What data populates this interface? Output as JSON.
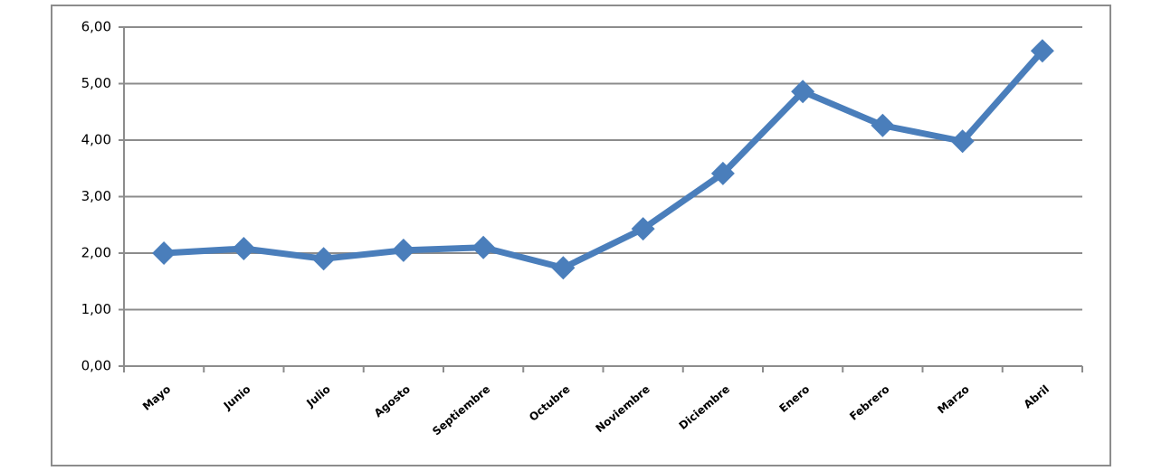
{
  "chart_data": {
    "type": "line",
    "categories": [
      "Mayo",
      "Junio",
      "Julio",
      "Agosto",
      "Septiembre",
      "Octubre",
      "Noviembre",
      "Diciembre",
      "Enero",
      "Febrero",
      "Marzo",
      "Abril"
    ],
    "values": [
      2.0,
      2.08,
      1.9,
      2.05,
      2.1,
      1.74,
      2.43,
      3.41,
      4.86,
      4.26,
      3.98,
      5.58
    ],
    "color": "#4a7ebb",
    "ylim": [
      0,
      6
    ],
    "yticks": [
      {
        "value": 0,
        "label": "0,00"
      },
      {
        "value": 1,
        "label": "1,00"
      },
      {
        "value": 2,
        "label": "2,00"
      },
      {
        "value": 3,
        "label": "3,00"
      },
      {
        "value": 4,
        "label": "4,00"
      },
      {
        "value": 5,
        "label": "5,00"
      },
      {
        "value": 6,
        "label": "6,00"
      }
    ],
    "grid": true
  }
}
